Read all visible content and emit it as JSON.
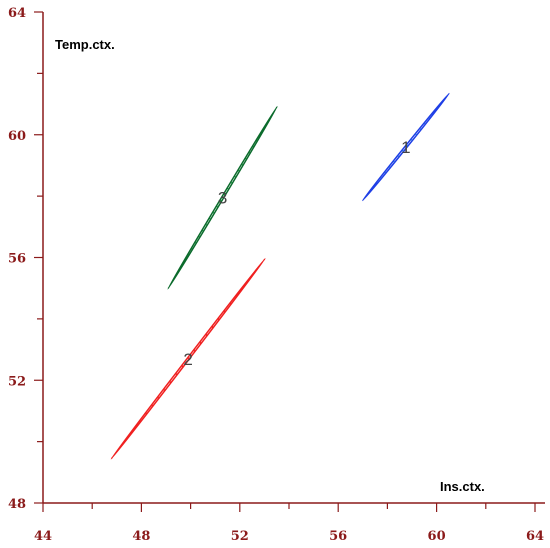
{
  "chart_data": {
    "type": "scatter",
    "title": "",
    "xlabel": "Ins.ctx.",
    "ylabel": "Temp.ctx.",
    "xlim": [
      44,
      64
    ],
    "ylim": [
      48,
      64
    ],
    "xticks": [
      "44",
      "48",
      "52",
      "56",
      "60",
      "64"
    ],
    "yticks": [
      "48",
      "52",
      "56",
      "60",
      "64"
    ],
    "axis_color": "#8b1a1a",
    "grid": false,
    "series": [
      {
        "label": "1",
        "shape": "confidence-ellipse",
        "hatch": "vertical",
        "color": "#1f3fe6",
        "fill": "#1fd3d3",
        "center": [
          58.75,
          59.6
        ],
        "extent_x": [
          57.1,
          60.4
        ],
        "extent_y": [
          57.9,
          61.3
        ]
      },
      {
        "label": "2",
        "shape": "confidence-ellipse",
        "hatch": "diagonal",
        "color": "#f02020",
        "fill": "#f02020",
        "center": [
          49.9,
          52.7
        ],
        "extent_x": [
          47.0,
          52.9
        ],
        "extent_y": [
          49.4,
          55.8
        ]
      },
      {
        "label": "3",
        "shape": "confidence-ellipse",
        "hatch": "vertical",
        "color": "#0b6b2c",
        "fill": "#13b047",
        "center": [
          51.3,
          57.95
        ],
        "extent_x": [
          49.2,
          53.4
        ],
        "extent_y": [
          55.0,
          60.9
        ]
      }
    ]
  }
}
